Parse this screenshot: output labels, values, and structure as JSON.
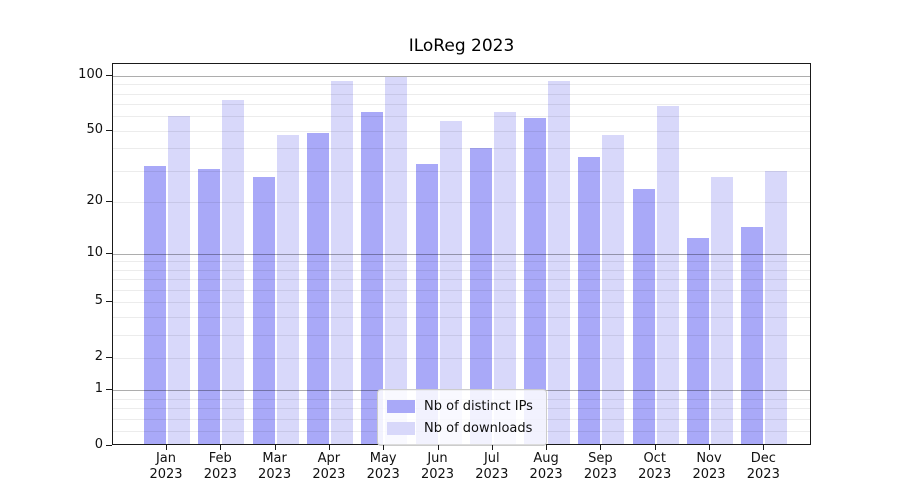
{
  "chart_data": {
    "type": "bar",
    "title": "ILoReg 2023",
    "categories": [
      "Jan 2023",
      "Feb 2023",
      "Mar 2023",
      "Apr 2023",
      "May 2023",
      "Jun 2023",
      "Jul 2023",
      "Aug 2023",
      "Sep 2023",
      "Oct 2023",
      "Nov 2023",
      "Dec 2023"
    ],
    "series": [
      {
        "name": "Nb of distinct IPs",
        "color": "#a9a9f8",
        "values": [
          31,
          30,
          27,
          47,
          62,
          32,
          39,
          57,
          35,
          23,
          12,
          14
        ]
      },
      {
        "name": "Nb of downloads",
        "color": "#d8d8fa",
        "values": [
          59,
          72,
          46,
          91,
          96,
          55,
          62,
          91,
          46,
          67,
          27,
          29
        ]
      }
    ],
    "xlabel": "",
    "ylabel": "",
    "yscale": "log1p",
    "ylim": [
      0,
      116
    ],
    "y_tick_labels": [
      "100",
      "50",
      "20",
      "10",
      "5",
      "2",
      "1",
      "0"
    ],
    "y_tick_values": [
      100,
      50,
      20,
      10,
      5,
      2,
      1,
      0
    ],
    "y_decade_gridlines": [
      100,
      10,
      1
    ],
    "y_minor_gridlines": [
      90,
      80,
      70,
      60,
      50,
      40,
      30,
      20,
      9,
      8,
      7,
      6,
      5,
      4,
      3,
      2,
      0.8,
      0.6,
      0.4,
      0.2
    ],
    "grid": true,
    "legend_position": "lower center"
  },
  "colors": {
    "bar_distinct_ips": "#a9a9f8",
    "bar_downloads": "#d8d8fa",
    "grid_decade": "#adadad",
    "grid_minor": "#ececec",
    "axis": "#1a1a1a",
    "background": "#ffffff"
  }
}
